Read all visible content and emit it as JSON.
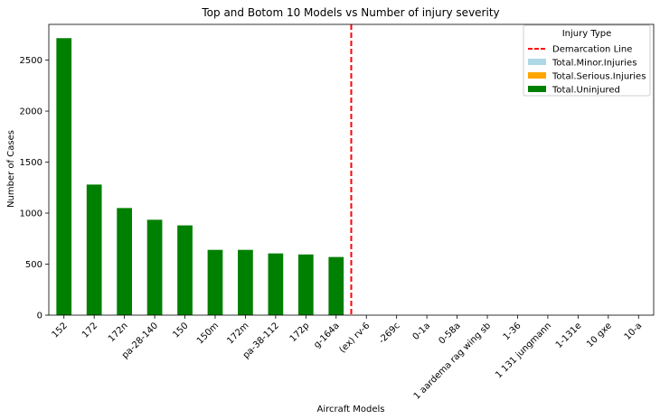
{
  "chart_data": {
    "type": "bar",
    "title": "Top and Botom 10 Models vs Number of injury severity",
    "xlabel": "Aircraft Models",
    "ylabel": "Number of Cases",
    "ylim": [
      0,
      2850
    ],
    "yticks": [
      0,
      500,
      1000,
      1500,
      2000,
      2500
    ],
    "categories": [
      "152",
      "172",
      "172n",
      "pa-28-140",
      "150",
      "150m",
      "172m",
      "pa-38-112",
      "172p",
      "g-164a",
      "(ex) rv-6",
      "-269c",
      "0-1a",
      "0-58a",
      "1 aardema rag wing sb",
      "1-36",
      "1 131 jungmann",
      "1-131e",
      "10 gxe",
      "10-a"
    ],
    "series": [
      {
        "name": "Total.Minor.Injuries",
        "color": "#add8e6",
        "values": [
          0,
          0,
          0,
          0,
          0,
          0,
          0,
          0,
          0,
          0,
          0,
          0,
          0,
          0,
          0,
          0,
          0,
          0,
          0,
          0
        ]
      },
      {
        "name": "Total.Serious.Injuries",
        "color": "#ffa500",
        "values": [
          0,
          0,
          0,
          0,
          0,
          0,
          0,
          0,
          0,
          0,
          0,
          0,
          0,
          0,
          0,
          0,
          0,
          0,
          0,
          0
        ]
      },
      {
        "name": "Total.Uninjured",
        "color": "#008000",
        "values": [
          2715,
          1280,
          1050,
          935,
          880,
          640,
          640,
          605,
          595,
          570,
          0,
          0,
          0,
          0,
          0,
          0,
          0,
          0,
          0,
          0
        ]
      }
    ],
    "demarcation": {
      "name": "Demarcation Line",
      "color": "#ff0000",
      "x": 9.5
    },
    "legend": {
      "title": "Injury Type",
      "position": "top-right"
    },
    "grid": false
  }
}
